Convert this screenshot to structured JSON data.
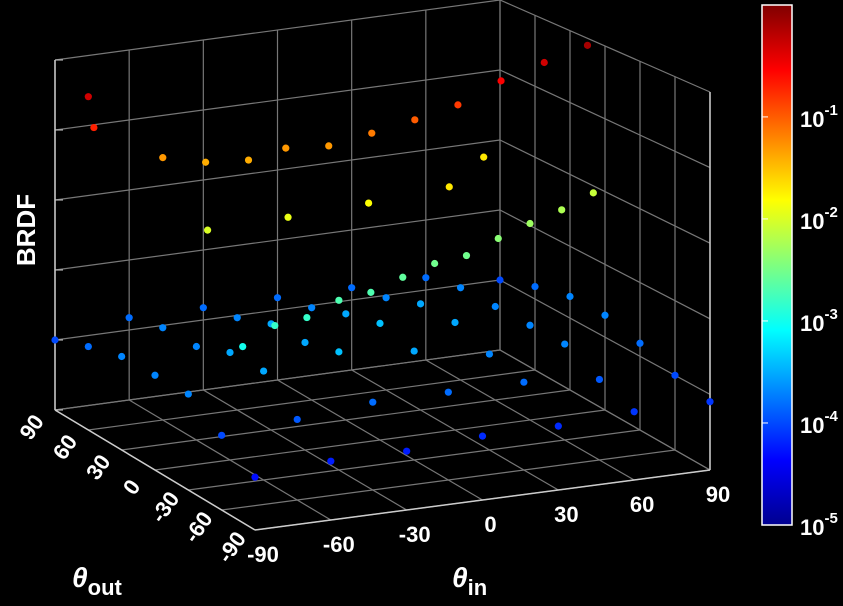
{
  "chart_data": {
    "type": "scatter3d",
    "x_label": "θin",
    "y_label": "θout",
    "z_label": "BRDF",
    "xlim": [
      -90,
      90
    ],
    "xticks": [
      -90,
      -60,
      -30,
      0,
      30,
      60,
      90
    ],
    "ylim": [
      -90,
      90
    ],
    "yticks": [
      -90,
      -60,
      -30,
      0,
      30,
      60,
      90
    ],
    "zlim": [
      1e-05,
      1
    ],
    "zticks": [
      1e-05,
      0.0001,
      0.001,
      0.01,
      0.1,
      1
    ],
    "zscale": "log",
    "grid": true,
    "colormap": "jet",
    "clim": [
      1e-05,
      1.25
    ],
    "cticks": [
      {
        "value": 0.1,
        "label": "10-1"
      },
      {
        "value": 0.01,
        "label": "10-2"
      },
      {
        "value": 0.001,
        "label": "10-3"
      },
      {
        "value": 0.0001,
        "label": "10-4"
      },
      {
        "value": 1e-05,
        "label": "10-5"
      }
    ],
    "points": {
      "theta_in": [
        -90,
        -60,
        -30,
        0,
        30,
        60,
        90,
        -90,
        -60,
        -30,
        0,
        30,
        60,
        90,
        -90,
        -60,
        -30,
        0,
        30,
        60,
        90,
        -90,
        -60,
        -30,
        0,
        30,
        60,
        90,
        -90,
        -60,
        -30,
        0,
        30,
        60,
        90,
        -90,
        -60,
        -30,
        0,
        30,
        60,
        90,
        -90,
        -60,
        -30,
        0,
        30,
        60,
        90,
        -75,
        -60,
        -45,
        -30,
        -15,
        0,
        15,
        30,
        45,
        60,
        75,
        90,
        -60,
        -45,
        -30,
        -15,
        0,
        15,
        30,
        45,
        60,
        75,
        90,
        -90,
        -90,
        -60,
        -30,
        0,
        30,
        60
      ],
      "theta_out": [
        -90,
        -90,
        -90,
        -90,
        -90,
        -90,
        -90,
        -60,
        -60,
        -60,
        -60,
        -60,
        -60,
        -60,
        -30,
        -30,
        -30,
        -30,
        -30,
        -30,
        -30,
        0,
        0,
        0,
        0,
        0,
        0,
        0,
        30,
        30,
        30,
        30,
        30,
        30,
        30,
        60,
        60,
        60,
        60,
        60,
        60,
        60,
        90,
        90,
        90,
        90,
        90,
        90,
        90,
        -45,
        -40,
        -35,
        -30,
        -25,
        -20,
        -15,
        -10,
        -5,
        0,
        5,
        10,
        60,
        55,
        50,
        50,
        45,
        40,
        35,
        30,
        25,
        20,
        15,
        60,
        55,
        20,
        15,
        10,
        5,
        40
      ],
      "brdf": [
        5e-05,
        6e-05,
        6e-05,
        7e-05,
        7e-05,
        8e-05,
        8e-05,
        0.0001,
        0.00012,
        0.00015,
        0.00015,
        0.00015,
        0.00012,
        0.0001,
        0.0002,
        0.0003,
        0.0004,
        0.0003,
        0.0002,
        0.0002,
        0.00015,
        0.0002,
        0.0003,
        0.0003,
        0.0004,
        0.0003,
        0.0002,
        0.0002,
        0.0002,
        0.0002,
        0.0003,
        0.0003,
        0.0003,
        0.0002,
        0.0002,
        0.00015,
        0.0002,
        0.0002,
        0.0002,
        0.0002,
        0.0002,
        0.00015,
        0.0001,
        0.00015,
        0.00015,
        0.00015,
        0.00015,
        0.00015,
        0.0001,
        0.001,
        0.0015,
        0.0015,
        0.002,
        0.002,
        0.0025,
        0.003,
        0.003,
        0.004,
        0.005,
        0.006,
        0.008,
        0.05,
        0.04,
        0.04,
        0.05,
        0.05,
        0.07,
        0.1,
        0.15,
        0.3,
        0.5,
        0.8,
        0.5,
        0.2,
        0.01,
        0.012,
        0.015,
        0.02,
        0.02
      ]
    }
  }
}
